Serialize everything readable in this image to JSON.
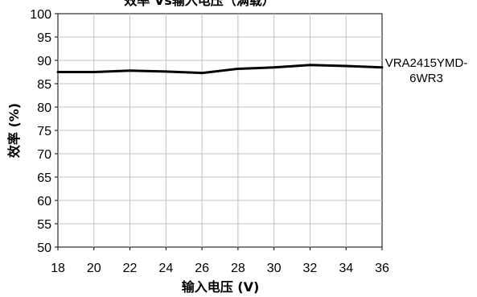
{
  "chart_data": {
    "type": "line",
    "title": "效率 Vs输入电压（满载）",
    "xlabel": "输入电压 (V)",
    "ylabel": "效率 (%)",
    "xlim": [
      18,
      36
    ],
    "ylim": [
      50,
      100
    ],
    "xticks": [
      "18",
      "20",
      "22",
      "24",
      "26",
      "28",
      "30",
      "32",
      "34",
      "36"
    ],
    "yticks": [
      "50",
      "55",
      "60",
      "65",
      "70",
      "75",
      "80",
      "85",
      "90",
      "95",
      "100"
    ],
    "grid": true,
    "legend": "right",
    "series": [
      {
        "name": "VRA2415YMD-6WR3",
        "legend_lines": [
          "VRA2415YMD-",
          "6WR3"
        ],
        "color": "#000000",
        "x": [
          18,
          20,
          22,
          24,
          26,
          28,
          30,
          32,
          34,
          36
        ],
        "y": [
          87.5,
          87.5,
          87.8,
          87.6,
          87.3,
          88.2,
          88.5,
          89.0,
          88.8,
          88.5
        ]
      }
    ]
  }
}
